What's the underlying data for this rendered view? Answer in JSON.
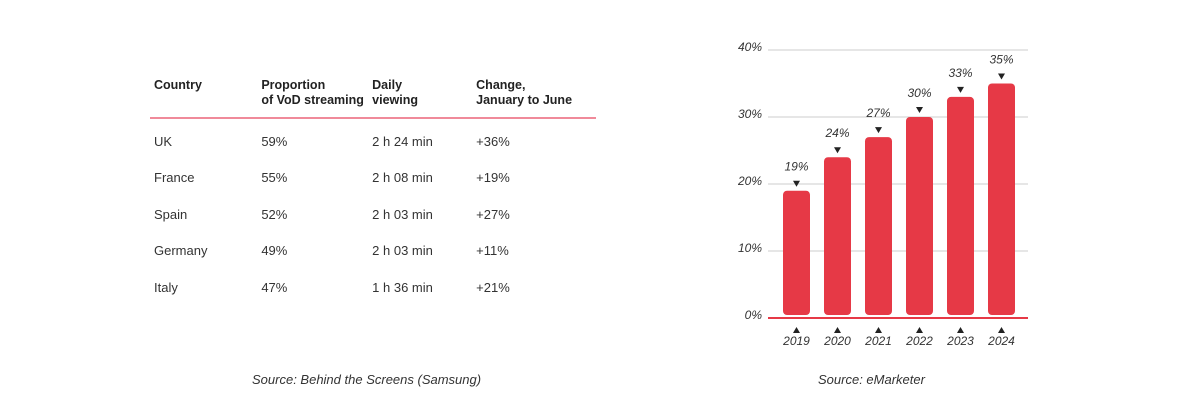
{
  "table": {
    "headers": [
      "Country",
      "Proportion\nof VoD streaming",
      "Daily\nviewing",
      "Change,\nJanuary to June"
    ],
    "rows": [
      [
        "UK",
        "59%",
        "2 h 24 min",
        "+36%"
      ],
      [
        "France",
        "55%",
        "2 h 08 min",
        "+19%"
      ],
      [
        "Spain",
        "52%",
        "2 h 03 min",
        "+27%"
      ],
      [
        "Germany",
        "49%",
        "2 h 03 min",
        "+11%"
      ],
      [
        "Italy",
        "47%",
        "1 h 36 min",
        "+21%"
      ]
    ],
    "source": "Source: Behind the Screens (Samsung)"
  },
  "chart_data": {
    "type": "bar",
    "categories": [
      "2019",
      "2020",
      "2021",
      "2022",
      "2023",
      "2024"
    ],
    "values": [
      19,
      24,
      27,
      30,
      33,
      35
    ],
    "value_labels": [
      "19%",
      "24%",
      "27%",
      "30%",
      "33%",
      "35%"
    ],
    "yticks": [
      "0%",
      "10%",
      "20%",
      "30%",
      "40%"
    ],
    "ylim": [
      0,
      40
    ],
    "grid": true,
    "bar_color": "#e63946",
    "source": "Source: eMarketer"
  },
  "colors": {
    "accent": "#e63946",
    "divider": "#f08a9a",
    "gridline": "#cccccc"
  }
}
